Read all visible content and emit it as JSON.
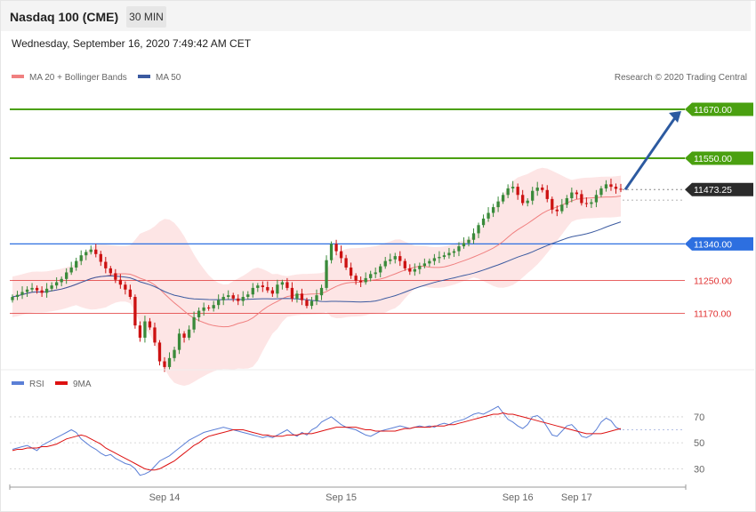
{
  "header": {
    "title": "Nasdaq 100 (CME)",
    "timeframe": "30 MIN",
    "datetime": "Wednesday, September 16, 2020 7:49:42 AM CET"
  },
  "legend": {
    "ma20": "MA 20 + Bollinger Bands",
    "ma50": "MA 50",
    "credit": "Research © 2020 Trading Central",
    "rsi": "RSI",
    "rsi_ma": "9MA"
  },
  "colors": {
    "bull": "#3a8a3a",
    "bear": "#cc1111",
    "ma20": "#f08080",
    "ma50": "#3b5aa0",
    "resistance": "#4aa010",
    "support_blue": "#2d6fe0",
    "support_red": "#e03030",
    "band_fill": "#fde0e0",
    "rsi": "#5b7fd6",
    "rsi_ma": "#dd1111",
    "arrow": "#2c5aa0"
  },
  "chart_data": {
    "type": "candlestick",
    "price_range": [
      11040,
      11720
    ],
    "levels": [
      {
        "value": 11670,
        "label": "11670.00",
        "kind": "resistance"
      },
      {
        "value": 11550,
        "label": "11550.00",
        "kind": "resistance"
      },
      {
        "value": 11473.25,
        "label": "11473.25",
        "kind": "current"
      },
      {
        "value": 11340,
        "label": "11340.00",
        "kind": "pivot"
      },
      {
        "value": 11250,
        "label": "11250.00",
        "kind": "support"
      },
      {
        "value": 11170,
        "label": "11170.00",
        "kind": "support"
      }
    ],
    "forecast_arrow": {
      "from": 11473,
      "to": 11670
    },
    "close": [
      11210,
      11215,
      11222,
      11228,
      11232,
      11226,
      11220,
      11230,
      11238,
      11246,
      11254,
      11270,
      11282,
      11298,
      11312,
      11320,
      11326,
      11315,
      11296,
      11280,
      11268,
      11252,
      11240,
      11228,
      11210,
      11140,
      11110,
      11150,
      11135,
      11098,
      11052,
      11038,
      11060,
      11080,
      11120,
      11110,
      11130,
      11160,
      11176,
      11184,
      11182,
      11190,
      11202,
      11210,
      11214,
      11206,
      11200,
      11210,
      11216,
      11232,
      11238,
      11234,
      11226,
      11218,
      11240,
      11246,
      11232,
      11206,
      11218,
      11202,
      11188,
      11200,
      11214,
      11232,
      11300,
      11340,
      11322,
      11305,
      11282,
      11262,
      11250,
      11246,
      11256,
      11266,
      11270,
      11285,
      11298,
      11302,
      11310,
      11298,
      11280,
      11272,
      11278,
      11286,
      11292,
      11298,
      11305,
      11308,
      11312,
      11318,
      11322,
      11334,
      11342,
      11350,
      11366,
      11386,
      11402,
      11416,
      11430,
      11444,
      11460,
      11476,
      11480,
      11460,
      11440,
      11446,
      11470,
      11478,
      11472,
      11450,
      11424,
      11420,
      11436,
      11452,
      11466,
      11462,
      11440,
      11438,
      11442,
      11460,
      11476,
      11486,
      11480,
      11475,
      11473
    ],
    "rsi": [
      45,
      46,
      47,
      48,
      46,
      44,
      48,
      50,
      52,
      54,
      56,
      58,
      60,
      58,
      53,
      50,
      47,
      45,
      42,
      40,
      41,
      38,
      36,
      34,
      33,
      30,
      25,
      26,
      28,
      32,
      36,
      38,
      40,
      43,
      46,
      49,
      52,
      54,
      56,
      58,
      59,
      60,
      61,
      62,
      61,
      60,
      59,
      58,
      57,
      56,
      55,
      54,
      55,
      54,
      56,
      58,
      60,
      57,
      55,
      58,
      56,
      60,
      62,
      66,
      68,
      70,
      67,
      64,
      62,
      61,
      60,
      58,
      56,
      55,
      57,
      59,
      60,
      61,
      62,
      63,
      62,
      61,
      62,
      63,
      62,
      63,
      62,
      64,
      65,
      64,
      66,
      67,
      68,
      70,
      72,
      73,
      72,
      74,
      76,
      78,
      73,
      68,
      66,
      63,
      61,
      64,
      70,
      71,
      68,
      62,
      56,
      55,
      59,
      63,
      64,
      60,
      55,
      54,
      56,
      60,
      66,
      69,
      67,
      62,
      60
    ],
    "rsi_ma": [
      44,
      45,
      45,
      46,
      46,
      46,
      47,
      47,
      48,
      49,
      51,
      53,
      54,
      55,
      56,
      55,
      53,
      51,
      49,
      46,
      44,
      42,
      40,
      38,
      36,
      34,
      32,
      30,
      29,
      29,
      30,
      32,
      34,
      36,
      39,
      42,
      45,
      48,
      50,
      53,
      55,
      56,
      57,
      58,
      59,
      60,
      60,
      60,
      59,
      58,
      57,
      56,
      56,
      55,
      55,
      55,
      56,
      56,
      56,
      57,
      57,
      57,
      58,
      59,
      60,
      61,
      62,
      62,
      62,
      62,
      62,
      61,
      60,
      60,
      59,
      59,
      59,
      59,
      59,
      60,
      61,
      61,
      62,
      62,
      62,
      62,
      63,
      63,
      63,
      64,
      64,
      65,
      66,
      67,
      68,
      69,
      70,
      71,
      72,
      72,
      73,
      72,
      72,
      71,
      70,
      69,
      68,
      67,
      66,
      65,
      64,
      63,
      62,
      61,
      60,
      59,
      58,
      57,
      57,
      57,
      57,
      58,
      59,
      60,
      61
    ],
    "rsi_levels": [
      70,
      50,
      30
    ],
    "x_ticks": [
      {
        "label": "Sep 14",
        "index": 31
      },
      {
        "label": "Sep 15",
        "index": 67
      },
      {
        "label": "Sep 16",
        "index": 103
      },
      {
        "label": "Sep 17",
        "index": 115
      }
    ]
  }
}
